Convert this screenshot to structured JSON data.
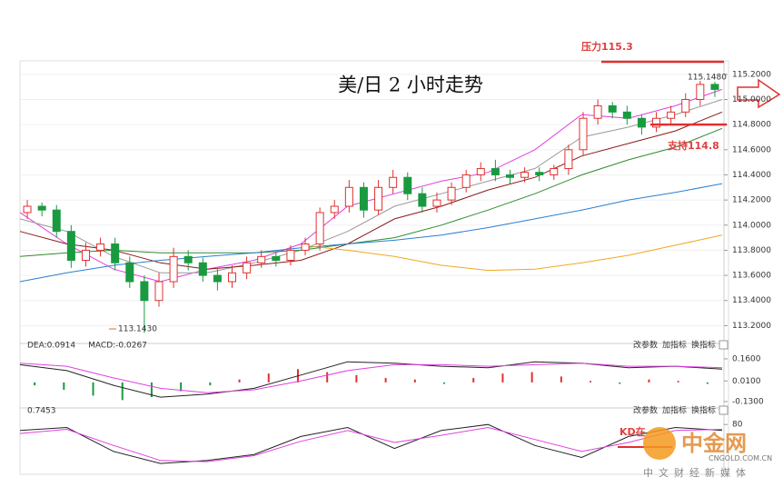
{
  "chart_data": [
    {
      "type": "candlestick",
      "title": "美/日 2 小时走势",
      "candles": {
        "open": [
          114.1,
          114.15,
          114.12,
          113.95,
          113.72,
          113.8,
          113.85,
          113.7,
          113.55,
          113.4,
          113.55,
          113.75,
          113.7,
          113.6,
          113.55,
          113.62,
          113.7,
          113.75,
          113.72,
          113.8,
          113.85,
          114.1,
          114.15,
          114.3,
          114.12,
          114.3,
          114.38,
          114.25,
          114.15,
          114.2,
          114.3,
          114.4,
          114.45,
          114.4,
          114.38,
          114.42,
          114.4,
          114.45,
          114.6,
          114.85,
          114.95,
          114.9,
          114.85,
          114.78,
          114.85,
          114.9,
          115.0,
          115.12
        ],
        "high": [
          114.2,
          114.18,
          114.16,
          114.0,
          113.86,
          113.9,
          113.9,
          113.75,
          113.6,
          113.62,
          113.82,
          113.8,
          113.74,
          113.66,
          113.68,
          113.75,
          113.8,
          113.78,
          113.84,
          113.9,
          114.14,
          114.2,
          114.36,
          114.34,
          114.36,
          114.44,
          114.42,
          114.3,
          114.26,
          114.34,
          114.44,
          114.5,
          114.52,
          114.44,
          114.46,
          114.46,
          114.48,
          114.64,
          114.9,
          115.0,
          114.98,
          114.95,
          114.88,
          114.9,
          114.95,
          115.05,
          115.148,
          115.14
        ],
        "low": [
          114.05,
          114.07,
          113.9,
          113.66,
          113.67,
          113.75,
          113.64,
          113.5,
          113.143,
          113.35,
          113.5,
          113.64,
          113.55,
          113.48,
          113.5,
          113.57,
          113.66,
          113.67,
          113.68,
          113.76,
          113.8,
          114.05,
          114.1,
          114.06,
          114.08,
          114.25,
          114.2,
          114.1,
          114.1,
          114.16,
          114.26,
          114.35,
          114.35,
          114.33,
          114.34,
          114.35,
          114.36,
          114.4,
          114.55,
          114.8,
          114.85,
          114.8,
          114.72,
          114.74,
          114.8,
          114.86,
          114.95,
          115.02
        ],
        "close": [
          114.15,
          114.12,
          113.95,
          113.72,
          113.8,
          113.85,
          113.7,
          113.55,
          113.4,
          113.55,
          113.75,
          113.7,
          113.6,
          113.55,
          113.62,
          113.7,
          113.75,
          113.72,
          113.8,
          113.85,
          114.1,
          114.15,
          114.3,
          114.12,
          114.3,
          114.38,
          114.25,
          114.15,
          114.2,
          114.3,
          114.4,
          114.45,
          114.4,
          114.38,
          114.42,
          114.4,
          114.45,
          114.6,
          114.85,
          114.95,
          114.9,
          114.85,
          114.78,
          114.85,
          114.9,
          115.0,
          115.12,
          115.08
        ]
      },
      "up_color": "#e03030",
      "down_color": "#1a9a40",
      "series": [
        {
          "color": "#e040e0",
          "values": [
            114.1,
            113.85,
            113.65,
            113.55,
            113.65,
            113.72,
            113.85,
            114.15,
            114.25,
            114.35,
            114.42,
            114.6,
            114.88,
            114.85,
            114.95,
            115.08
          ]
        },
        {
          "color": "#999999",
          "values": [
            114.05,
            113.95,
            113.75,
            113.62,
            113.62,
            113.7,
            113.8,
            113.95,
            114.15,
            114.25,
            114.35,
            114.45,
            114.7,
            114.78,
            114.88,
            115.0
          ]
        },
        {
          "color": "#8b1a1a",
          "values": [
            113.95,
            113.85,
            113.8,
            113.7,
            113.65,
            113.68,
            113.72,
            113.85,
            114.05,
            114.15,
            114.28,
            114.38,
            114.55,
            114.65,
            114.75,
            114.9
          ]
        },
        {
          "color": "#2e8b2e",
          "values": [
            113.75,
            113.78,
            113.8,
            113.78,
            113.78,
            113.78,
            113.8,
            113.85,
            113.9,
            114.0,
            114.12,
            114.25,
            114.4,
            114.52,
            114.62,
            114.77
          ]
        },
        {
          "color": "#2a7fd0",
          "values": [
            113.55,
            113.62,
            113.68,
            113.72,
            113.75,
            113.78,
            113.82,
            113.85,
            113.88,
            113.92,
            113.98,
            114.05,
            114.12,
            114.2,
            114.26,
            114.33
          ]
        },
        {
          "color": "#f0a820",
          "values": [
            null,
            null,
            null,
            null,
            null,
            null,
            113.84,
            113.8,
            113.75,
            113.68,
            113.64,
            113.65,
            113.7,
            113.76,
            113.84,
            113.92
          ]
        }
      ],
      "ylim": [
        113.08,
        115.3
      ],
      "yticks": [
        {
          "value": 113.2,
          "label": "113.2000"
        },
        {
          "value": 113.4,
          "label": "113.4000"
        },
        {
          "value": 113.6,
          "label": "113.6000"
        },
        {
          "value": 113.8,
          "label": "113.8000"
        },
        {
          "value": 114,
          "label": "114.0000"
        },
        {
          "value": 114.2,
          "label": "114.2000"
        },
        {
          "value": 114.4,
          "label": "114.4000"
        },
        {
          "value": 114.6,
          "label": "114.6000"
        },
        {
          "value": 114.8,
          "label": "114.8000"
        },
        {
          "value": 115,
          "label": "115.0000"
        },
        {
          "value": 115.2,
          "label": "115.2000"
        }
      ],
      "grid": true,
      "levels": [
        {
          "label": "压力115.3",
          "value": 115.3
        },
        {
          "label": "支持114.8",
          "value": 114.8
        }
      ],
      "annotations": [
        "113.1430",
        "115.1480"
      ]
    },
    {
      "type": "macd",
      "indicators": [
        "DEA:0.0914",
        "MACD:-0.0267"
      ],
      "buttons": [
        "改参数",
        "加指标",
        "换指标"
      ],
      "bars": [
        -0.02,
        -0.05,
        -0.09,
        -0.12,
        -0.1,
        -0.06,
        -0.02,
        0.02,
        0.06,
        0.09,
        0.07,
        0.05,
        0.03,
        0.02,
        -0.01,
        0.03,
        0.06,
        0.07,
        0.04,
        0.01,
        -0.01,
        0.02,
        0.01,
        -0.01
      ],
      "bar_colors": [
        "#e03030",
        "#1a9a40"
      ],
      "series": [
        {
          "color": "#222222",
          "values": [
            0.12,
            0.08,
            -0.02,
            -0.1,
            -0.08,
            -0.04,
            0.05,
            0.14,
            0.13,
            0.11,
            0.1,
            0.14,
            0.13,
            0.1,
            0.11,
            0.09
          ]
        },
        {
          "color": "#e040e0",
          "values": [
            0.13,
            0.11,
            0.03,
            -0.04,
            -0.07,
            -0.05,
            0.01,
            0.08,
            0.12,
            0.12,
            0.11,
            0.12,
            0.13,
            0.11,
            0.11,
            0.1
          ]
        }
      ],
      "ylim": [
        -0.155,
        0.24
      ],
      "yticks": [
        {
          "value": 0.16,
          "label": "0.1600"
        },
        {
          "value": 0.01,
          "label": "0.0100"
        },
        {
          "value": -0.13,
          "label": "-0.1300"
        }
      ]
    },
    {
      "type": "kd",
      "indicators": [
        "0.7453"
      ],
      "buttons": [
        "改参数",
        "加指标",
        "换指标"
      ],
      "series": [
        {
          "color": "#222222",
          "values": [
            70,
            75,
            35,
            15,
            20,
            30,
            60,
            75,
            40,
            70,
            80,
            45,
            25,
            60,
            75,
            70
          ]
        },
        {
          "color": "#e040e0",
          "values": [
            65,
            72,
            45,
            20,
            18,
            28,
            52,
            70,
            50,
            62,
            75,
            55,
            35,
            50,
            70,
            72
          ]
        }
      ],
      "annotations": [
        "KD在"
      ],
      "ylim": [
        0,
        100
      ],
      "yticks": [
        80
      ]
    }
  ],
  "watermark": {
    "name": "中金网",
    "domain": "CNGOLD.COM.CN",
    "slogan": "中文财经新媒体"
  }
}
